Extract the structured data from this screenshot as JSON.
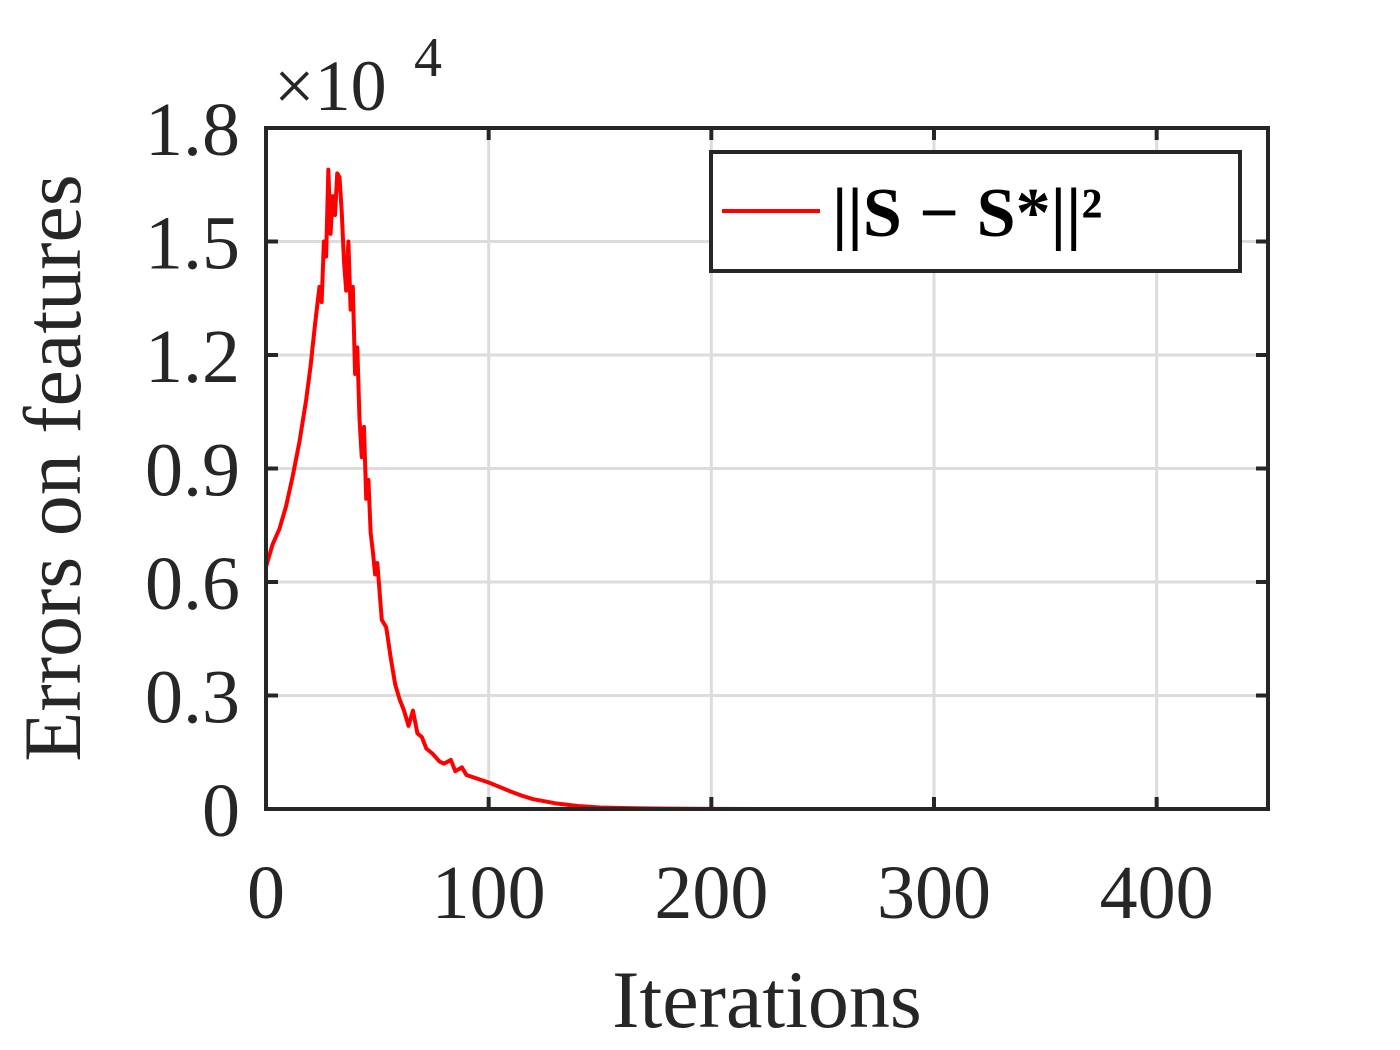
{
  "chart_data": {
    "type": "line",
    "title": "",
    "xlabel": "Iterations",
    "ylabel": "Errors on features",
    "y_exponent_label": "×10",
    "y_exponent_power": "4",
    "y_multiplier": 10000,
    "xlim": [
      0,
      450
    ],
    "ylim": [
      0,
      1.8
    ],
    "xticks": [
      0,
      100,
      200,
      300,
      400
    ],
    "xtick_labels": [
      "0",
      "100",
      "200",
      "300",
      "400"
    ],
    "yticks": [
      0,
      0.3,
      0.6,
      0.9,
      1.2,
      1.5,
      1.8
    ],
    "ytick_labels": [
      "0",
      "0.3",
      "0.6",
      "0.9",
      "1.2",
      "1.5",
      "1.8"
    ],
    "grid": true,
    "legend_position": "top-right",
    "series": [
      {
        "name": "||S − S*||²",
        "color": "#ff0000",
        "x": [
          0,
          3,
          6,
          9,
          12,
          15,
          18,
          20,
          22,
          24,
          25,
          26,
          27,
          28,
          29,
          30,
          31,
          32,
          33,
          34,
          35,
          36,
          37,
          38,
          39,
          40,
          41,
          42,
          43,
          44,
          45,
          46,
          47,
          48,
          49,
          50,
          52,
          54,
          56,
          58,
          60,
          62,
          64,
          66,
          68,
          70,
          72,
          75,
          78,
          80,
          83,
          85,
          88,
          90,
          95,
          100,
          105,
          110,
          115,
          120,
          130,
          140,
          150,
          160,
          170,
          180,
          190,
          200,
          220,
          250,
          300,
          350,
          400,
          445
        ],
        "values": [
          0.64,
          0.7,
          0.74,
          0.8,
          0.88,
          0.97,
          1.08,
          1.17,
          1.28,
          1.38,
          1.34,
          1.5,
          1.46,
          1.69,
          1.52,
          1.62,
          1.57,
          1.68,
          1.67,
          1.58,
          1.45,
          1.37,
          1.5,
          1.32,
          1.38,
          1.15,
          1.22,
          1.03,
          0.93,
          1.01,
          0.82,
          0.87,
          0.73,
          0.68,
          0.62,
          0.65,
          0.5,
          0.48,
          0.4,
          0.33,
          0.29,
          0.26,
          0.22,
          0.26,
          0.2,
          0.19,
          0.16,
          0.145,
          0.125,
          0.12,
          0.13,
          0.1,
          0.11,
          0.09,
          0.08,
          0.07,
          0.058,
          0.046,
          0.035,
          0.026,
          0.015,
          0.008,
          0.004,
          0.0025,
          0.0015,
          0.001,
          0.0005,
          0.0002,
          0.0001,
          0,
          0,
          0,
          0,
          0
        ]
      }
    ]
  },
  "legend": {
    "entry_label": "||S − S*||²"
  }
}
